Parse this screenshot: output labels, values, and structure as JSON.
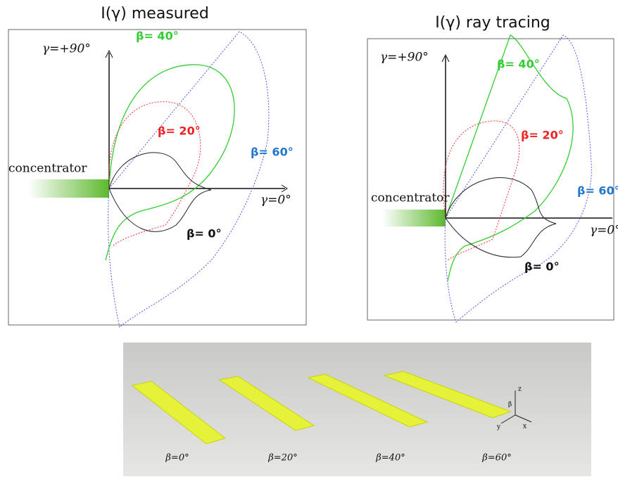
{
  "panels": [
    {
      "title": "I(γ) measured",
      "y_axis_label": "γ=+90°",
      "x_axis_label": "γ=0°",
      "concentrator_label": "concentrator",
      "curve_labels": [
        "β= 0°",
        "β= 20°",
        "β= 40°",
        "β= 60°"
      ]
    },
    {
      "title": "I(γ) ray tracing",
      "y_axis_label": "γ=+90°",
      "x_axis_label": "γ=0°",
      "concentrator_label": "concentrator",
      "curve_labels": [
        "β= 0°",
        "β= 20°",
        "β= 40°",
        "β= 60°"
      ]
    }
  ],
  "photo": {
    "labels": [
      "β=0°",
      "β=20°",
      "β=40°",
      "β=60°"
    ],
    "axes": {
      "z": "z",
      "beta": "β",
      "y": "y",
      "x": "x"
    }
  }
}
